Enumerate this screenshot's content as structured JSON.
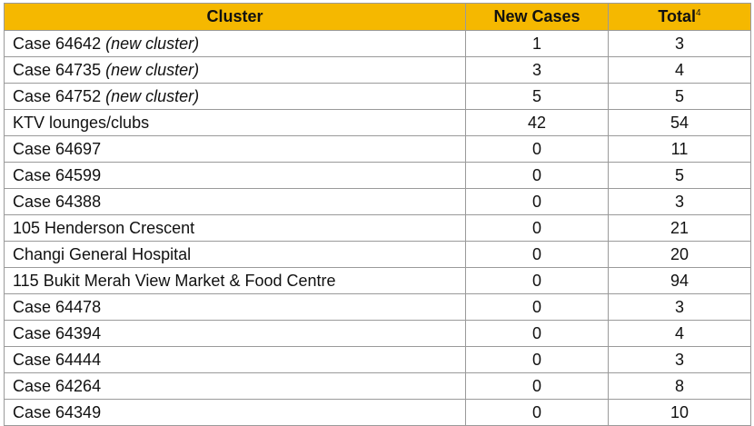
{
  "table": {
    "headers": {
      "cluster": "Cluster",
      "new_cases": "New Cases",
      "total": "Total",
      "total_footnote": "4"
    },
    "rows": [
      {
        "cluster": "Case 64642",
        "note": "(new cluster)",
        "new_cases": "1",
        "total": "3"
      },
      {
        "cluster": "Case 64735",
        "note": "(new cluster)",
        "new_cases": "3",
        "total": "4"
      },
      {
        "cluster": "Case 64752",
        "note": "(new cluster)",
        "new_cases": "5",
        "total": "5"
      },
      {
        "cluster": "KTV lounges/clubs",
        "note": "",
        "new_cases": "42",
        "total": "54"
      },
      {
        "cluster": "Case 64697",
        "note": "",
        "new_cases": "0",
        "total": "11"
      },
      {
        "cluster": "Case 64599",
        "note": "",
        "new_cases": "0",
        "total": "5"
      },
      {
        "cluster": "Case 64388",
        "note": "",
        "new_cases": "0",
        "total": "3"
      },
      {
        "cluster": "105 Henderson Crescent",
        "note": "",
        "new_cases": "0",
        "total": "21"
      },
      {
        "cluster": "Changi General Hospital",
        "note": "",
        "new_cases": "0",
        "total": "20"
      },
      {
        "cluster": "115 Bukit Merah View Market & Food Centre",
        "note": "",
        "new_cases": "0",
        "total": "94"
      },
      {
        "cluster": "Case 64478",
        "note": "",
        "new_cases": "0",
        "total": "3"
      },
      {
        "cluster": "Case 64394",
        "note": "",
        "new_cases": "0",
        "total": "4"
      },
      {
        "cluster": "Case 64444",
        "note": "",
        "new_cases": "0",
        "total": "3"
      },
      {
        "cluster": "Case 64264",
        "note": "",
        "new_cases": "0",
        "total": "8"
      },
      {
        "cluster": "Case 64349",
        "note": "",
        "new_cases": "0",
        "total": "10"
      }
    ]
  },
  "colors": {
    "header_background": "#f5b800",
    "border": "#9a9a9a",
    "text": "#111111"
  }
}
